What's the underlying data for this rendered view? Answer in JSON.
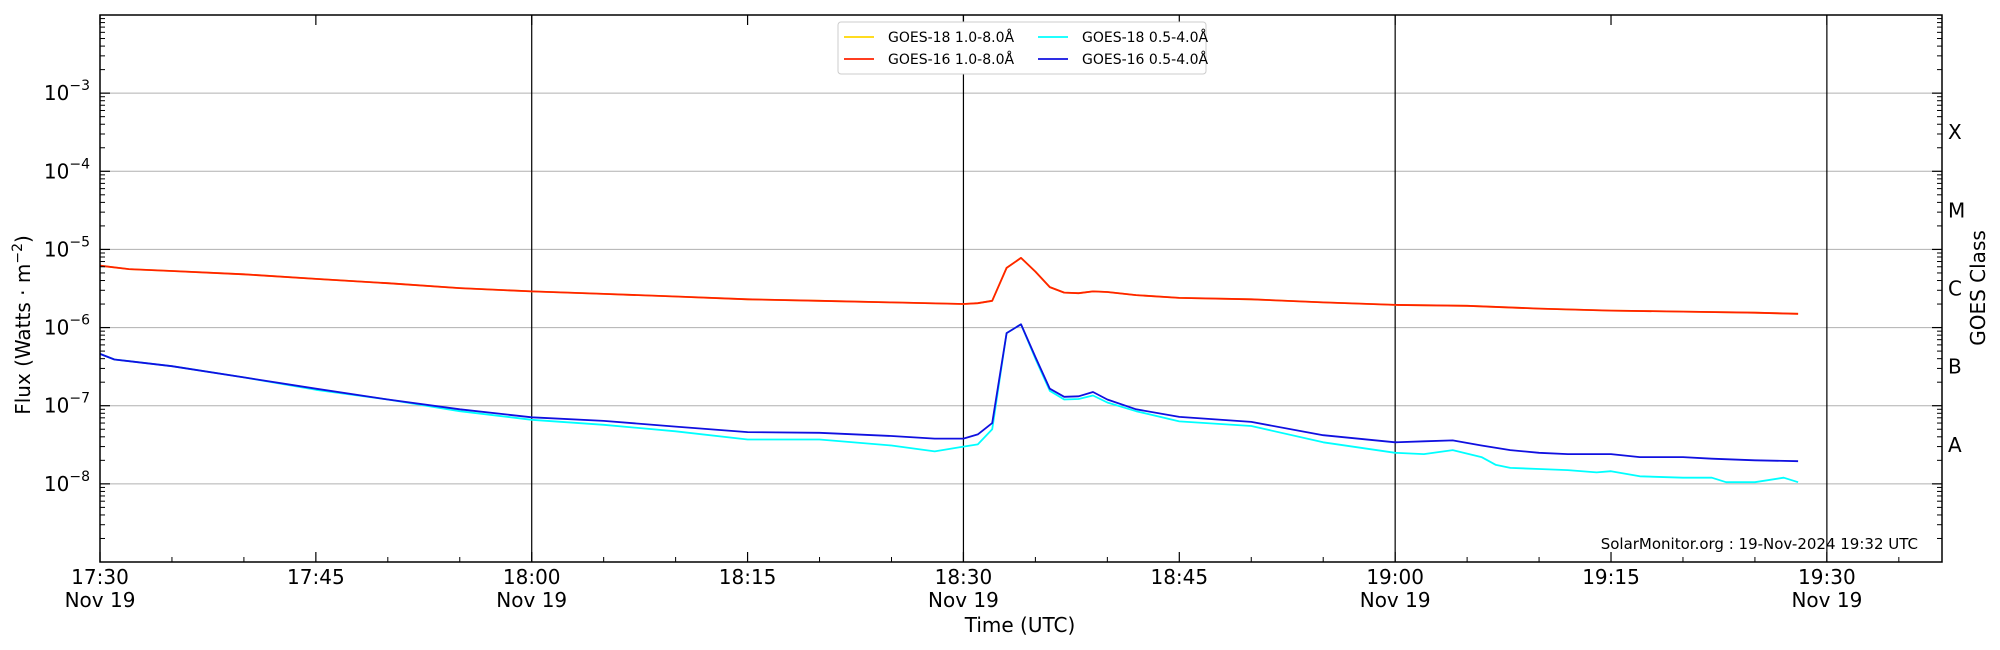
{
  "chart_data": {
    "type": "line",
    "title": "",
    "xlabel": "Time (UTC)",
    "ylabel": "Flux (Watts · m",
    "ylabel_sup": "−2",
    "ylabel_close": ")",
    "y2label": "GOES Class",
    "yscale": "log",
    "ylim": [
      1e-09,
      0.01
    ],
    "xlim": [
      "17:30",
      "19:38"
    ],
    "grid": "horizontal",
    "legend_position": "top-center",
    "credit": "SolarMonitor.org : 19-Nov-2024 19:32 UTC",
    "x_ticks": [
      {
        "time": "17:30",
        "date": "Nov 19"
      },
      {
        "time": "17:45",
        "date": ""
      },
      {
        "time": "18:00",
        "date": "Nov 19"
      },
      {
        "time": "18:15",
        "date": ""
      },
      {
        "time": "18:30",
        "date": "Nov 19"
      },
      {
        "time": "18:45",
        "date": ""
      },
      {
        "time": "19:00",
        "date": "Nov 19"
      },
      {
        "time": "19:15",
        "date": ""
      },
      {
        "time": "19:30",
        "date": "Nov 19"
      }
    ],
    "vertical_lines": [
      "18:00",
      "18:30",
      "19:00",
      "19:30"
    ],
    "y_ticks": [
      {
        "base": "10",
        "exp": "−3",
        "value": 0.001
      },
      {
        "base": "10",
        "exp": "−4",
        "value": 0.0001
      },
      {
        "base": "10",
        "exp": "−5",
        "value": 1e-05
      },
      {
        "base": "10",
        "exp": "−6",
        "value": 1e-06
      },
      {
        "base": "10",
        "exp": "−7",
        "value": 1e-07
      },
      {
        "base": "10",
        "exp": "−8",
        "value": 1e-08
      }
    ],
    "goes_classes": [
      {
        "label": "X",
        "value": 0.000316
      },
      {
        "label": "M",
        "value": 3.16e-05
      },
      {
        "label": "C",
        "value": 3.16e-06
      },
      {
        "label": "B",
        "value": 3.16e-07
      },
      {
        "label": "A",
        "value": 3.16e-08
      }
    ],
    "legend": [
      {
        "label": "GOES-18 1.0-8.0Å",
        "color": "#FFD700",
        "col": 0,
        "row": 0
      },
      {
        "label": "GOES-16 1.0-8.0Å",
        "color": "#FF2200",
        "col": 0,
        "row": 1
      },
      {
        "label": "GOES-18 0.5-4.0Å",
        "color": "#00FFFF",
        "col": 1,
        "row": 0
      },
      {
        "label": "GOES-16 0.5-4.0Å",
        "color": "#1010E0",
        "col": 1,
        "row": 1
      }
    ],
    "series": [
      {
        "name": "GOES-18 1.0-8.0Å",
        "color": "#FFD700",
        "points": [
          [
            "17:30",
            6.2e-06
          ],
          [
            "17:32",
            5.6e-06
          ],
          [
            "17:35",
            5.3e-06
          ],
          [
            "17:40",
            4.8e-06
          ],
          [
            "17:45",
            4.2e-06
          ],
          [
            "17:50",
            3.7e-06
          ],
          [
            "17:55",
            3.2e-06
          ],
          [
            "18:00",
            2.9e-06
          ],
          [
            "18:05",
            2.7e-06
          ],
          [
            "18:10",
            2.5e-06
          ],
          [
            "18:15",
            2.3e-06
          ],
          [
            "18:20",
            2.2e-06
          ],
          [
            "18:25",
            2.1e-06
          ],
          [
            "18:30",
            2e-06
          ],
          [
            "18:31",
            2.05e-06
          ],
          [
            "18:32",
            2.2e-06
          ],
          [
            "18:33",
            5.8e-06
          ],
          [
            "18:34",
            7.8e-06
          ],
          [
            "18:35",
            5.2e-06
          ],
          [
            "18:36",
            3.3e-06
          ],
          [
            "18:37",
            2.8e-06
          ],
          [
            "18:38",
            2.75e-06
          ],
          [
            "18:39",
            2.9e-06
          ],
          [
            "18:40",
            2.85e-06
          ],
          [
            "18:42",
            2.6e-06
          ],
          [
            "18:45",
            2.4e-06
          ],
          [
            "18:50",
            2.3e-06
          ],
          [
            "18:55",
            2.1e-06
          ],
          [
            "19:00",
            1.95e-06
          ],
          [
            "19:05",
            1.9e-06
          ],
          [
            "19:10",
            1.75e-06
          ],
          [
            "19:15",
            1.65e-06
          ],
          [
            "19:20",
            1.6e-06
          ],
          [
            "19:25",
            1.55e-06
          ],
          [
            "19:28",
            1.5e-06
          ]
        ]
      },
      {
        "name": "GOES-16 1.0-8.0Å",
        "color": "#FF2200",
        "points": [
          [
            "17:30",
            6.2e-06
          ],
          [
            "17:32",
            5.6e-06
          ],
          [
            "17:35",
            5.3e-06
          ],
          [
            "17:40",
            4.8e-06
          ],
          [
            "17:45",
            4.2e-06
          ],
          [
            "17:50",
            3.7e-06
          ],
          [
            "17:55",
            3.2e-06
          ],
          [
            "18:00",
            2.9e-06
          ],
          [
            "18:05",
            2.7e-06
          ],
          [
            "18:10",
            2.5e-06
          ],
          [
            "18:15",
            2.3e-06
          ],
          [
            "18:20",
            2.2e-06
          ],
          [
            "18:25",
            2.1e-06
          ],
          [
            "18:30",
            2e-06
          ],
          [
            "18:31",
            2.05e-06
          ],
          [
            "18:32",
            2.2e-06
          ],
          [
            "18:33",
            5.8e-06
          ],
          [
            "18:34",
            7.8e-06
          ],
          [
            "18:35",
            5.2e-06
          ],
          [
            "18:36",
            3.3e-06
          ],
          [
            "18:37",
            2.8e-06
          ],
          [
            "18:38",
            2.75e-06
          ],
          [
            "18:39",
            2.9e-06
          ],
          [
            "18:40",
            2.85e-06
          ],
          [
            "18:42",
            2.6e-06
          ],
          [
            "18:45",
            2.4e-06
          ],
          [
            "18:50",
            2.3e-06
          ],
          [
            "18:55",
            2.1e-06
          ],
          [
            "19:00",
            1.95e-06
          ],
          [
            "19:05",
            1.9e-06
          ],
          [
            "19:10",
            1.75e-06
          ],
          [
            "19:15",
            1.65e-06
          ],
          [
            "19:20",
            1.6e-06
          ],
          [
            "19:25",
            1.55e-06
          ],
          [
            "19:28",
            1.5e-06
          ]
        ]
      },
      {
        "name": "GOES-18 0.5-4.0Å",
        "color": "#00FFFF",
        "points": [
          [
            "17:30",
            4.6e-07
          ],
          [
            "17:31",
            3.9e-07
          ],
          [
            "17:35",
            3.2e-07
          ],
          [
            "17:40",
            2.3e-07
          ],
          [
            "17:45",
            1.6e-07
          ],
          [
            "17:50",
            1.2e-07
          ],
          [
            "17:55",
            8.5e-08
          ],
          [
            "18:00",
            6.6e-08
          ],
          [
            "18:05",
            5.7e-08
          ],
          [
            "18:10",
            4.7e-08
          ],
          [
            "18:15",
            3.7e-08
          ],
          [
            "18:20",
            3.7e-08
          ],
          [
            "18:25",
            3.1e-08
          ],
          [
            "18:28",
            2.6e-08
          ],
          [
            "18:30",
            3e-08
          ],
          [
            "18:31",
            3.2e-08
          ],
          [
            "18:32",
            5e-08
          ],
          [
            "18:33",
            8.5e-07
          ],
          [
            "18:34",
            1.1e-06
          ],
          [
            "18:35",
            4e-07
          ],
          [
            "18:36",
            1.55e-07
          ],
          [
            "18:37",
            1.2e-07
          ],
          [
            "18:38",
            1.22e-07
          ],
          [
            "18:39",
            1.35e-07
          ],
          [
            "18:40",
            1.1e-07
          ],
          [
            "18:42",
            8.5e-08
          ],
          [
            "18:45",
            6.3e-08
          ],
          [
            "18:50",
            5.5e-08
          ],
          [
            "18:55",
            3.4e-08
          ],
          [
            "19:00",
            2.5e-08
          ],
          [
            "19:02",
            2.4e-08
          ],
          [
            "19:04",
            2.7e-08
          ],
          [
            "19:06",
            2.2e-08
          ],
          [
            "19:07",
            1.75e-08
          ],
          [
            "19:08",
            1.6e-08
          ],
          [
            "19:10",
            1.55e-08
          ],
          [
            "19:12",
            1.5e-08
          ],
          [
            "19:14",
            1.4e-08
          ],
          [
            "19:15",
            1.45e-08
          ],
          [
            "19:17",
            1.25e-08
          ],
          [
            "19:20",
            1.2e-08
          ],
          [
            "19:22",
            1.2e-08
          ],
          [
            "19:23",
            1.05e-08
          ],
          [
            "19:25",
            1.05e-08
          ],
          [
            "19:27",
            1.2e-08
          ],
          [
            "19:28",
            1.05e-08
          ]
        ]
      },
      {
        "name": "GOES-16 0.5-4.0Å",
        "color": "#1010E0",
        "points": [
          [
            "17:30",
            4.6e-07
          ],
          [
            "17:31",
            3.9e-07
          ],
          [
            "17:35",
            3.2e-07
          ],
          [
            "17:40",
            2.3e-07
          ],
          [
            "17:45",
            1.65e-07
          ],
          [
            "17:50",
            1.2e-07
          ],
          [
            "17:55",
            9e-08
          ],
          [
            "18:00",
            7.1e-08
          ],
          [
            "18:05",
            6.4e-08
          ],
          [
            "18:10",
            5.4e-08
          ],
          [
            "18:15",
            4.6e-08
          ],
          [
            "18:20",
            4.5e-08
          ],
          [
            "18:25",
            4.1e-08
          ],
          [
            "18:28",
            3.8e-08
          ],
          [
            "18:30",
            3.8e-08
          ],
          [
            "18:31",
            4.3e-08
          ],
          [
            "18:32",
            6e-08
          ],
          [
            "18:33",
            8.5e-07
          ],
          [
            "18:34",
            1.1e-06
          ],
          [
            "18:35",
            4.2e-07
          ],
          [
            "18:36",
            1.65e-07
          ],
          [
            "18:37",
            1.3e-07
          ],
          [
            "18:38",
            1.32e-07
          ],
          [
            "18:39",
            1.5e-07
          ],
          [
            "18:40",
            1.2e-07
          ],
          [
            "18:42",
            9e-08
          ],
          [
            "18:45",
            7.2e-08
          ],
          [
            "18:50",
            6.2e-08
          ],
          [
            "18:55",
            4.2e-08
          ],
          [
            "19:00",
            3.4e-08
          ],
          [
            "19:02",
            3.5e-08
          ],
          [
            "19:04",
            3.6e-08
          ],
          [
            "19:06",
            3.1e-08
          ],
          [
            "19:08",
            2.7e-08
          ],
          [
            "19:10",
            2.5e-08
          ],
          [
            "19:12",
            2.4e-08
          ],
          [
            "19:15",
            2.4e-08
          ],
          [
            "19:17",
            2.2e-08
          ],
          [
            "19:20",
            2.2e-08
          ],
          [
            "19:22",
            2.1e-08
          ],
          [
            "19:25",
            2e-08
          ],
          [
            "19:28",
            1.95e-08
          ]
        ]
      }
    ]
  }
}
